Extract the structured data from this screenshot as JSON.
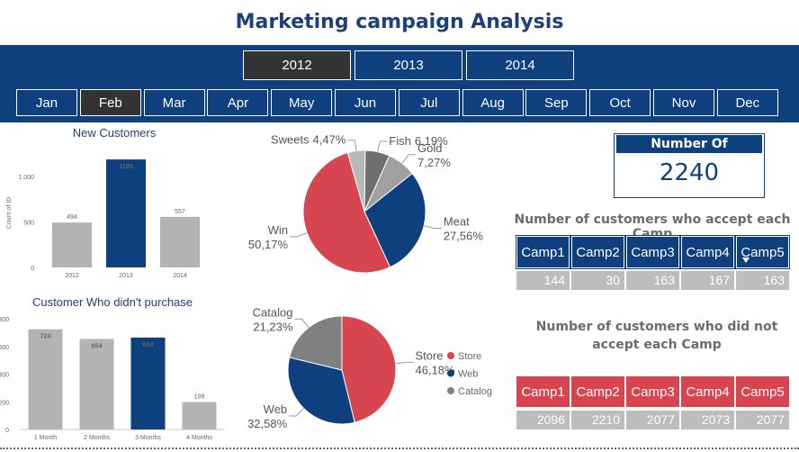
{
  "title": "Marketing campaign Analysis",
  "years": [
    "2012",
    "2013",
    "2014"
  ],
  "selected_year": "2012",
  "months": [
    "Jan",
    "Feb",
    "Mar",
    "Apr",
    "May",
    "Jun",
    "Jul",
    "Aug",
    "Sep",
    "Oct",
    "Nov",
    "Dec"
  ],
  "selected_month": "Feb",
  "chart_data": [
    {
      "type": "bar",
      "title": "New Customers",
      "y_label": "Count of ID",
      "categories": [
        "2012",
        "2013",
        "2014"
      ],
      "values": [
        494,
        1189,
        557
      ],
      "colors": [
        "#b3b3b3",
        "#0e3f7e",
        "#b3b3b3"
      ],
      "ylim": [
        0,
        1200
      ],
      "yticks": [
        0,
        500,
        {
          "value": 1000,
          "label": "1.000"
        }
      ]
    },
    {
      "type": "bar",
      "title": "Customer Who didn't purchase",
      "categories": [
        "1 Month",
        "2 Months",
        "3 Months",
        "4 Months"
      ],
      "values": [
        724,
        654,
        664,
        198
      ],
      "colors": [
        "#b3b3b3",
        "#b3b3b3",
        "#0e3f7e",
        "#b3b3b3"
      ],
      "ylim": [
        0,
        800
      ],
      "yticks": [
        0,
        200,
        400,
        600,
        800
      ]
    },
    {
      "type": "pie",
      "categories": [
        "Sweets",
        "Fish",
        "Gold",
        "Meat",
        "Win"
      ],
      "values": [
        4.47,
        6.19,
        7.27,
        27.56,
        50.17
      ],
      "value_labels": [
        "4,47%",
        "6,19%",
        "7,27%",
        "27,56%",
        "50,17%"
      ],
      "colors": [
        "#b8b8b8",
        "#6f6f6f",
        "#a0a0a0",
        "#0e3f7e",
        "#d64550"
      ]
    },
    {
      "type": "pie",
      "categories": [
        "Store",
        "Web",
        "Catalog"
      ],
      "values": [
        46.18,
        32.58,
        21.23
      ],
      "value_labels": [
        "46,18%",
        "32,58%",
        "21,23%"
      ],
      "colors": [
        "#d64550",
        "#0e3f7e",
        "#808080"
      ],
      "legend": true
    }
  ],
  "kpi": {
    "title": "Number Of Customers",
    "value": 2240
  },
  "accept_table": {
    "title": "Number of customers who accept each Camp",
    "headers": [
      "Camp1",
      "Camp2",
      "Camp3",
      "Camp4",
      "Camp5"
    ],
    "values": [
      144,
      30,
      163,
      167,
      163
    ]
  },
  "reject_table": {
    "title": "Number of customers who did not accept each Camp",
    "headers": [
      "Camp1",
      "Camp2",
      "Camp3",
      "Camp4",
      "Camp5"
    ],
    "values": [
      2096,
      2210,
      2077,
      2073,
      2077
    ]
  }
}
